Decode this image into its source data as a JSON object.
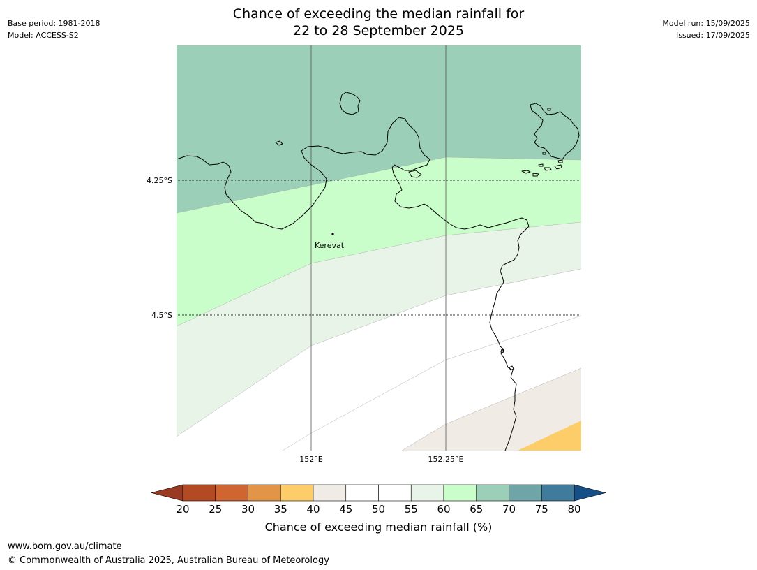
{
  "header": {
    "left_lines": [
      "Base period: 1981-2018",
      "Model: ACCESS-S2"
    ],
    "right_lines": [
      "Model run: 15/09/2025",
      "Issued: 17/09/2025"
    ],
    "title_lines": [
      "Chance of exceeding the median rainfall for",
      "22 to 28 September 2025"
    ]
  },
  "map": {
    "lat_labels": [
      "4.25°S",
      "4.5°S"
    ],
    "lon_labels": [
      "152°E",
      "152.25°E"
    ],
    "place": "Kerevat"
  },
  "colorbar": {
    "levels": [
      20,
      25,
      30,
      35,
      40,
      45,
      50,
      55,
      60,
      65,
      70,
      75,
      80
    ],
    "labels": [
      "20",
      "25",
      "30",
      "35",
      "40",
      "45",
      "50",
      "55",
      "60",
      "65",
      "70",
      "75",
      "80"
    ],
    "colors": [
      "#b34a24",
      "#cf6530",
      "#e29547",
      "#fdcd6a",
      "#f0ebe5",
      "#ffffff",
      "#ffffff",
      "#e9f4e9",
      "#c9fdc9",
      "#9ccfb8",
      "#70a5a7",
      "#417b9b"
    ],
    "under_color": "#9a3a22",
    "over_color": "#164e86",
    "title": "Chance of exceeding median rainfall (%)"
  },
  "footer": {
    "url": "www.bom.gov.au/climate",
    "copyright": "© Commonwealth of Australia 2025, Australian Bureau of Meteorology"
  }
}
